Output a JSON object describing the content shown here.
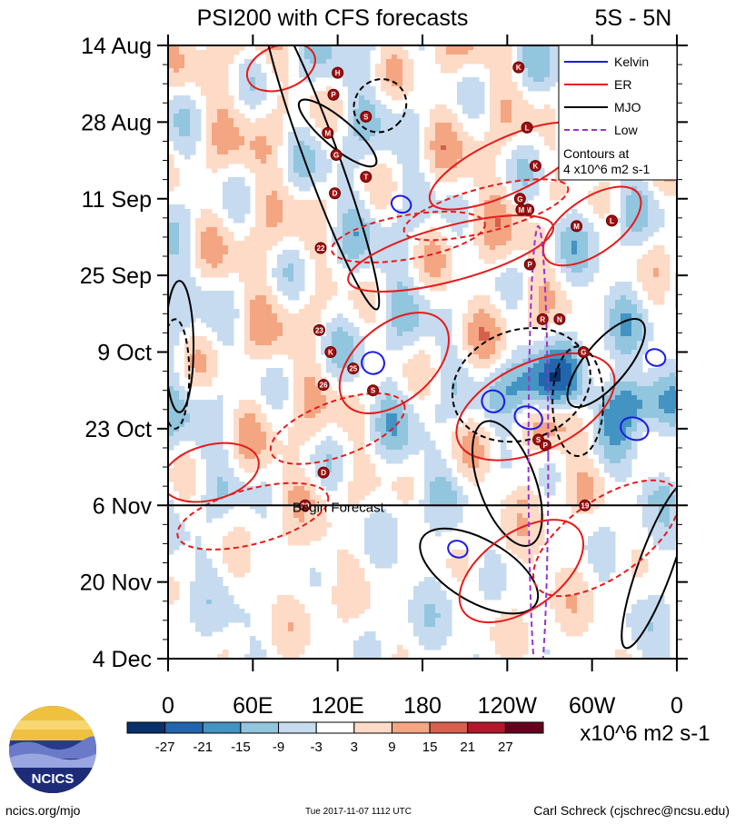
{
  "chart_data": {
    "type": "heatmap",
    "title": "PSI200 with CFS forecasts",
    "region": "5S - 5N",
    "y_ticks": [
      "14 Aug",
      "28 Aug",
      "11 Sep",
      "25 Sep",
      "9 Oct",
      "23 Oct",
      "6 Nov",
      "20 Nov",
      "4 Dec"
    ],
    "x_ticks": [
      "0",
      "60E",
      "120E",
      "180",
      "120W",
      "60W",
      "0"
    ],
    "x_range_deg_east": [
      0,
      360
    ],
    "y_range_days": [
      0,
      112
    ],
    "forecast_line_day": 84,
    "forecast_label": "Begin Forecast",
    "legend": [
      {
        "name": "Kelvin",
        "color": "#1a1ae6",
        "dash": "solid"
      },
      {
        "name": "ER",
        "color": "#e61a1a",
        "dash": "solid"
      },
      {
        "name": "MJO",
        "color": "#000000",
        "dash": "solid"
      },
      {
        "name": "Low",
        "color": "#9933cc",
        "dash": "dashed"
      }
    ],
    "contour_note": "Contours at\n4 x10^6 m2 s-1",
    "colorbar": {
      "ticks": [
        "-27",
        "-21",
        "-15",
        "-9",
        "-3",
        "3",
        "9",
        "15",
        "21",
        "27"
      ],
      "colors": [
        "#08306b",
        "#2166ac",
        "#4393c3",
        "#92c5de",
        "#c6dbef",
        "#ffffff",
        "#fddbc7",
        "#f4a582",
        "#d6604d",
        "#b2182b",
        "#67001f"
      ],
      "units": "x10^6 m2 s-1"
    },
    "storms": [
      {
        "label": "H",
        "lon": 120,
        "day": 5
      },
      {
        "label": "P",
        "lon": 117,
        "day": 9
      },
      {
        "label": "S",
        "lon": 140,
        "day": 13
      },
      {
        "label": "M",
        "lon": 113,
        "day": 16
      },
      {
        "label": "G",
        "lon": 119,
        "day": 20
      },
      {
        "label": "T",
        "lon": 140,
        "day": 24
      },
      {
        "label": "D",
        "lon": 118,
        "day": 27
      },
      {
        "label": "22",
        "lon": 108,
        "day": 37
      },
      {
        "label": "23",
        "lon": 107,
        "day": 52
      },
      {
        "label": "K",
        "lon": 115,
        "day": 56
      },
      {
        "label": "25",
        "lon": 131,
        "day": 59
      },
      {
        "label": "26",
        "lon": 110,
        "day": 62
      },
      {
        "label": "S",
        "lon": 145,
        "day": 63
      },
      {
        "label": "D",
        "lon": 110,
        "day": 78
      },
      {
        "label": "29",
        "lon": 97,
        "day": 84
      },
      {
        "label": "K",
        "lon": 248,
        "day": 4
      },
      {
        "label": "L",
        "lon": 254,
        "day": 15
      },
      {
        "label": "K",
        "lon": 260,
        "day": 22
      },
      {
        "label": "G",
        "lon": 249,
        "day": 28
      },
      {
        "label": "M",
        "lon": 255,
        "day": 30
      },
      {
        "label": "M",
        "lon": 250,
        "day": 30
      },
      {
        "label": "M",
        "lon": 289,
        "day": 33
      },
      {
        "label": "L",
        "lon": 314,
        "day": 32
      },
      {
        "label": "P",
        "lon": 256,
        "day": 40
      },
      {
        "label": "R",
        "lon": 265,
        "day": 50
      },
      {
        "label": "N",
        "lon": 277,
        "day": 50
      },
      {
        "label": "G",
        "lon": 294,
        "day": 56
      },
      {
        "label": "S",
        "lon": 262,
        "day": 72
      },
      {
        "label": "P",
        "lon": 267,
        "day": 73
      },
      {
        "label": "19",
        "lon": 295,
        "day": 84
      }
    ]
  },
  "footer": {
    "logo_text": "NCICS",
    "left": "ncics.org/mjo",
    "center": "Tue 2017-11-07 1112 UTC",
    "right": "Carl Schreck (cjschrec@ncsu.edu)"
  }
}
